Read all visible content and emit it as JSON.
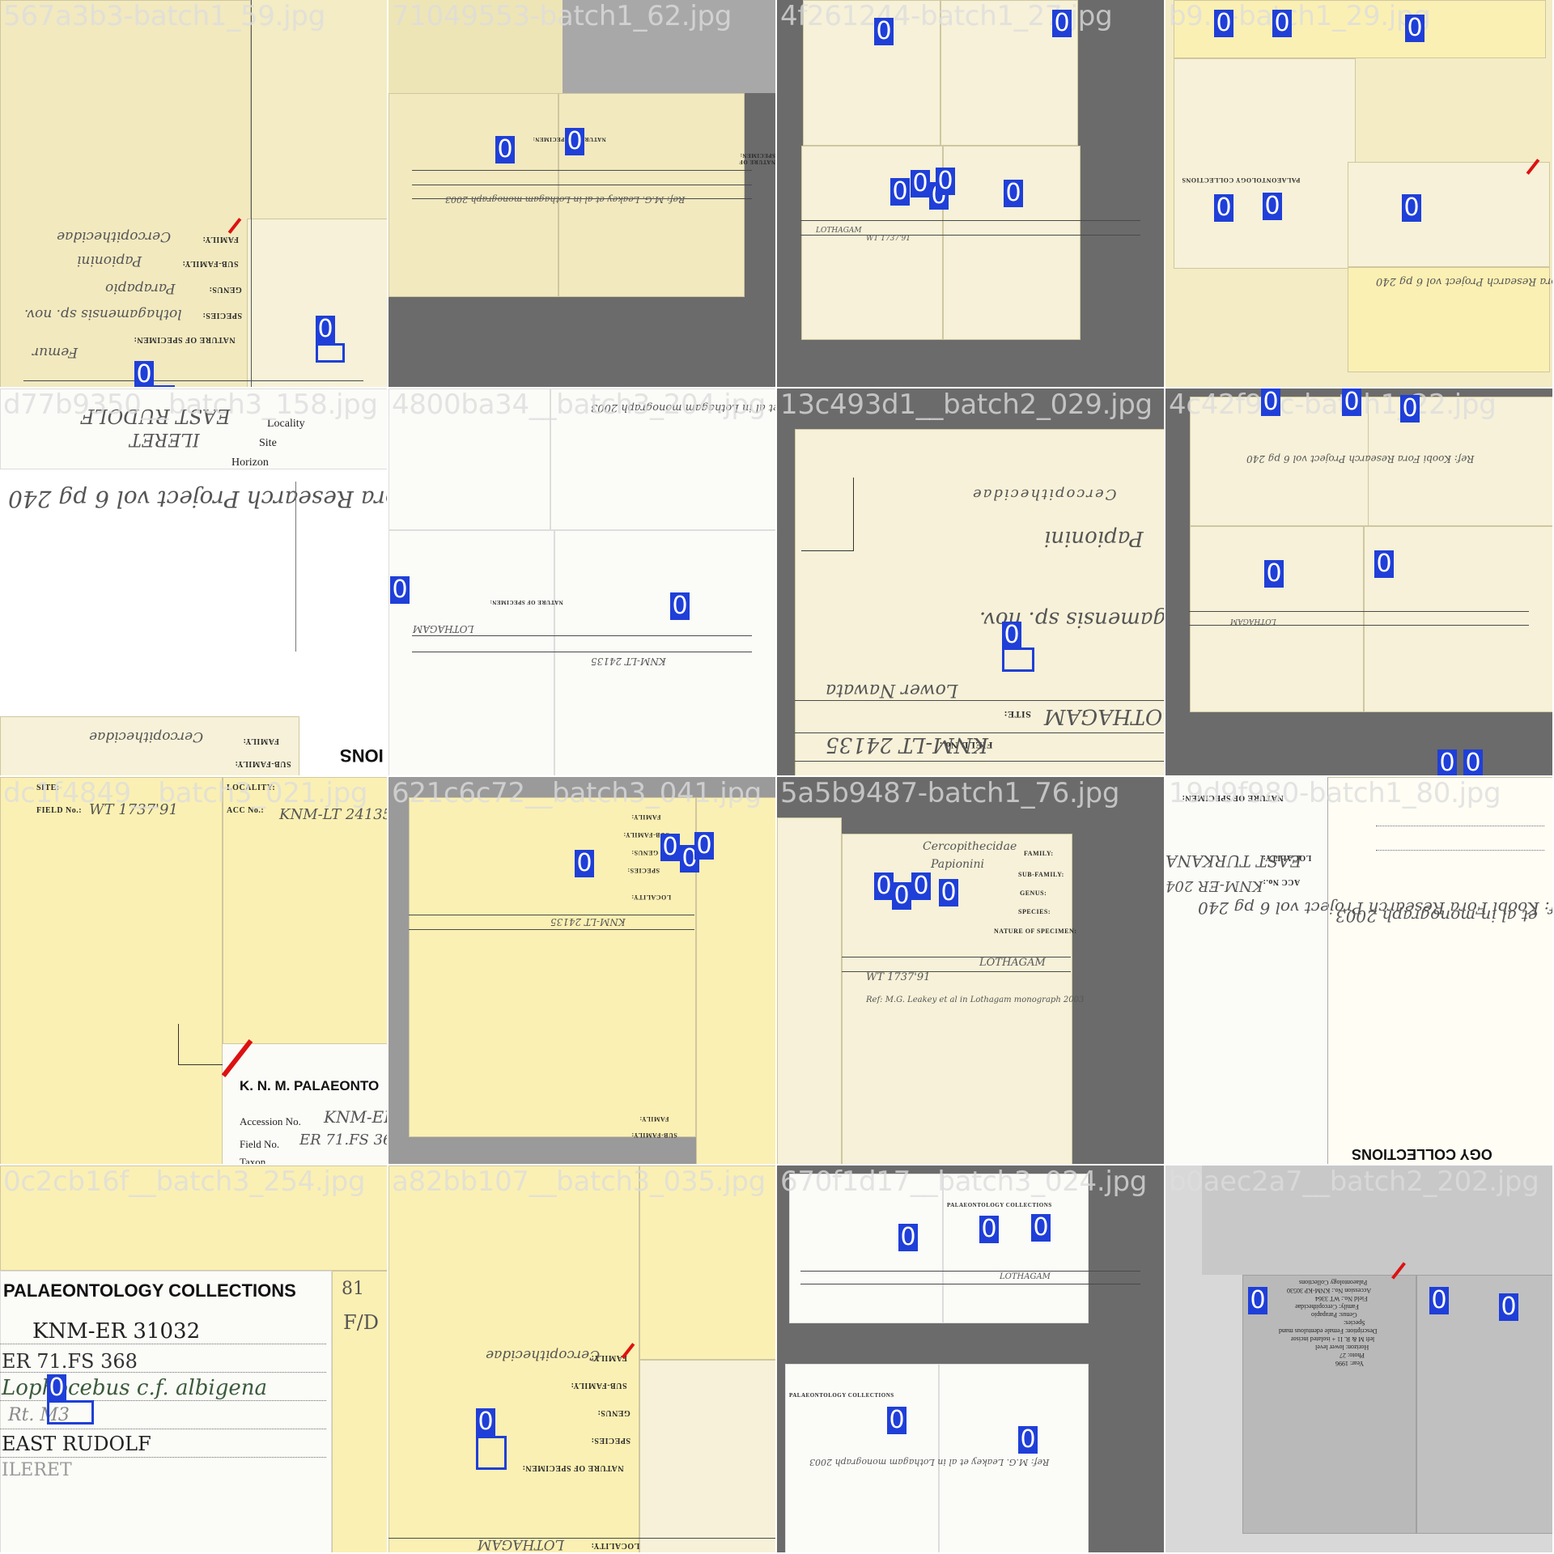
{
  "tiles": [
    {
      "filename": "567a3b3-batch1_59.jpg",
      "detections": [
        {
          "label": "0"
        },
        {
          "label": "0"
        }
      ]
    },
    {
      "filename": "71049553-batch1_62.jpg",
      "detections": [
        {
          "label": "0"
        },
        {
          "label": "0"
        }
      ]
    },
    {
      "filename": "4f261244-batch1_27.jpg",
      "detections": [
        {
          "label": "0"
        },
        {
          "label": "0"
        },
        {
          "label": "0"
        },
        {
          "label": "0"
        },
        {
          "label": "0"
        },
        {
          "label": "0"
        },
        {
          "label": "0"
        }
      ]
    },
    {
      "filename": "b9...-batch1_29.jpg",
      "detections": [
        {
          "label": "0"
        },
        {
          "label": "0"
        },
        {
          "label": "0"
        },
        {
          "label": "0"
        },
        {
          "label": "0"
        },
        {
          "label": "0"
        }
      ]
    },
    {
      "filename": "d77b9350__batch3_158.jpg",
      "detections": [
        {
          "label": "0"
        }
      ]
    },
    {
      "filename": "4800ba34__batch3_204.jpg",
      "detections": [
        {
          "label": "0"
        },
        {
          "label": "0"
        }
      ]
    },
    {
      "filename": "13c493d1__batch2_029.jpg",
      "detections": [
        {
          "label": "0"
        }
      ]
    },
    {
      "filename": "4c42f92c-batch1_22.jpg",
      "detections": [
        {
          "label": "0"
        },
        {
          "label": "0"
        },
        {
          "label": "0"
        },
        {
          "label": "0"
        },
        {
          "label": "0"
        },
        {
          "label": "0"
        },
        {
          "label": "0"
        }
      ]
    },
    {
      "filename": "dc1f4849__batch3_021.jpg",
      "detections": []
    },
    {
      "filename": "621c6c72__batch3_041.jpg",
      "detections": [
        {
          "label": "0"
        },
        {
          "label": "0"
        },
        {
          "label": "0"
        },
        {
          "label": "0"
        }
      ]
    },
    {
      "filename": "5a5b9487-batch1_76.jpg",
      "detections": [
        {
          "label": "0"
        },
        {
          "label": "0"
        },
        {
          "label": "0"
        },
        {
          "label": "0"
        }
      ]
    },
    {
      "filename": "19d9f980-batch1_80.jpg",
      "detections": []
    },
    {
      "filename": "0c2cb16f__batch3_254.jpg",
      "detections": [
        {
          "label": "0"
        }
      ]
    },
    {
      "filename": "a82bb107__batch3_035.jpg",
      "detections": [
        {
          "label": "0"
        }
      ]
    },
    {
      "filename": "670f1d17__batch3_024.jpg",
      "detections": [
        {
          "label": "0"
        },
        {
          "label": "0"
        },
        {
          "label": "0"
        },
        {
          "label": "0"
        },
        {
          "label": "0"
        }
      ]
    },
    {
      "filename": "b0aec2a7__batch2_202.jpg",
      "detections": [
        {
          "label": "0"
        },
        {
          "label": "0"
        },
        {
          "label": "0"
        }
      ]
    }
  ],
  "card_text": {
    "family": "FAMILY:",
    "sub_family": "SUB-FAMILY:",
    "genus": "GENUS:",
    "species": "SPECIES:",
    "nature": "NATURE OF SPECIMEN:",
    "locality": "LOCALITY:",
    "site": "SITE:",
    "acc_no": "ACC No.:",
    "field_no": "FIELD No.:",
    "horizon": "Horizon",
    "site_label": "Site",
    "locality_label": "Locality",
    "collections_title": "PALAEONTOLOGY COLLECTIONS",
    "knm_title": "K. N. M. PALAEONTO",
    "accession": "Accession No.",
    "field_no_2": "Field No.",
    "taxon": "Taxon",
    "ogy_collections": "OGY COLLECTIONS"
  },
  "handwriting": {
    "cercopithecidae": "Cercopithecidae",
    "papionini": "Papionini",
    "parapapio": "Parapapio",
    "lothagamensis": "lothagamensis sp. nov.",
    "femur": "Femur",
    "lothagam": "LOTHAGAM",
    "knm_lt": "KNM-LT 24135",
    "field_wt": "WT 1737'91",
    "ref_leakey": "Ref: M.G. Leakey et al in Lothagam monograph 2003",
    "ref_koobi": "Ref: Koobi Fora Research Project vol 6 pg 240",
    "east_turkana": "EAST TURKANA",
    "knm_er": "KNM-ER 31032",
    "er_fs": "ER 71.FS 368",
    "lophocebus": "Lophocebus c.f. albigena",
    "rt_m3": "Rt. M3",
    "east_rudolf": "EAST RUDOLF",
    "ileret": "ILERET",
    "lower_nawata": "Lower Nawata",
    "m3": "M3",
    "code_81": "81",
    "code_fd": "F/D",
    "knm_er_204": "KNM-ER 204",
    "monograph": "et al in monograph 2003",
    "ion": "IONS"
  },
  "typed_card": {
    "l1": "Palaeontology Collections",
    "l2": "Accession No.: KNM-KP 30530",
    "l3": "Field No.: WT 3364",
    "l4": "Family: Cercopithecidae",
    "l5": "Genus: Parapapio",
    "l6": "Species:",
    "l7": "Description: Female edentulous mand",
    "l8": "left M & R. I1 + isolated incisor",
    "l9": "Horizon: lower level",
    "l10": "Photo: 27",
    "l11": "Year: 1996"
  },
  "colors": {
    "box": "#1f3fd8",
    "filename": "#dcdcdc",
    "background_gray": "#6b6b6b",
    "card_cream": "#f2e9bf"
  }
}
